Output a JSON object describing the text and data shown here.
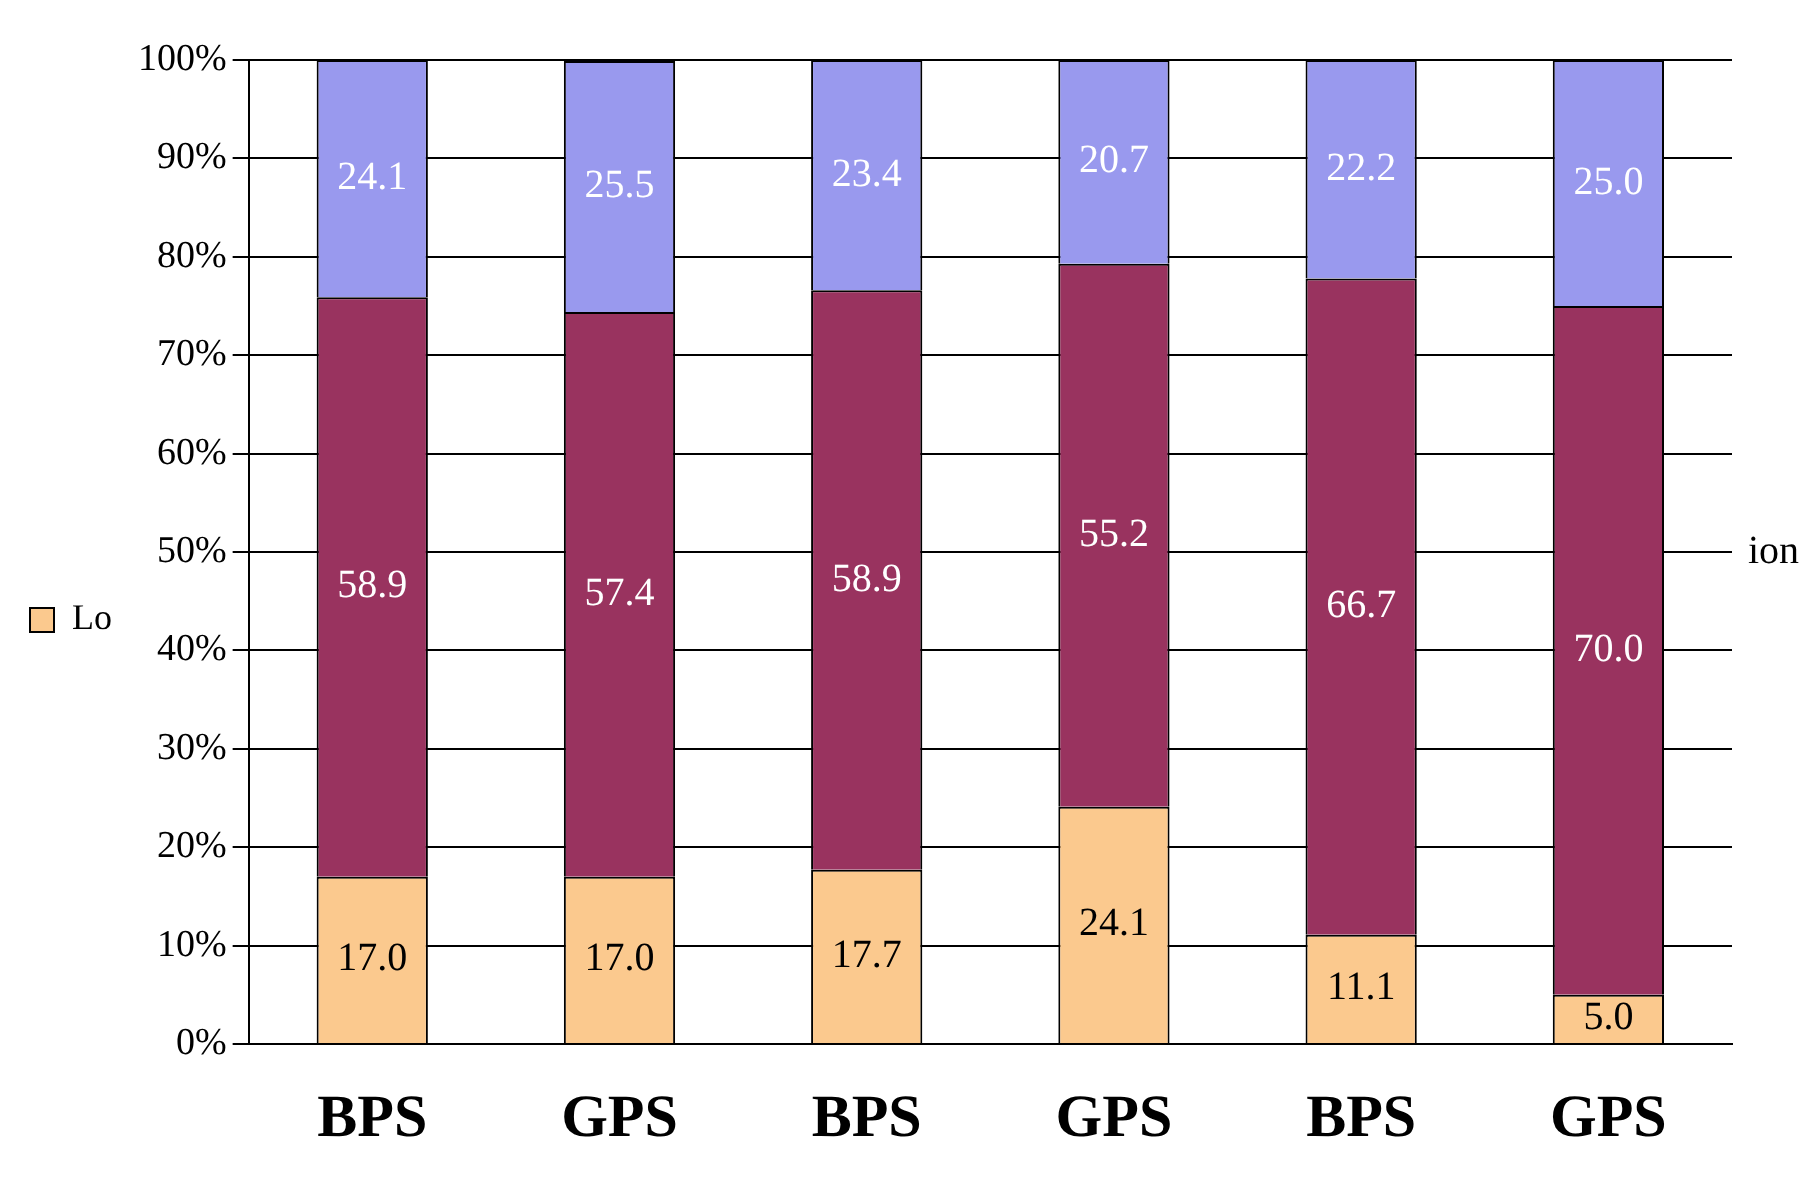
{
  "chart_data": {
    "type": "bar",
    "stacked": true,
    "categories": [
      "BPS",
      "GPS",
      "BPS",
      "GPS",
      "BPS",
      "GPS"
    ],
    "series": [
      {
        "name": "Lo",
        "color": "#fbc98e",
        "values": [
          17.0,
          17.0,
          17.7,
          24.1,
          11.1,
          5.0
        ],
        "value_labels": [
          "17.0",
          "17.0",
          "17.7",
          "24.1",
          "11.1",
          "5.0"
        ]
      },
      {
        "color": "#99335f",
        "values": [
          58.9,
          57.4,
          58.9,
          55.2,
          66.7,
          70.0
        ],
        "value_labels": [
          "58.9",
          "57.4",
          "58.9",
          "55.2",
          "66.7",
          "70.0"
        ]
      },
      {
        "color": "#9999ee",
        "values": [
          24.1,
          25.5,
          23.4,
          20.7,
          22.2,
          25.0
        ],
        "value_labels": [
          "24.1",
          "25.5",
          "23.4",
          "20.7",
          "22.2",
          "25.0"
        ]
      }
    ],
    "ylim": [
      0,
      100
    ],
    "yticks": [
      {
        "value": 0,
        "label": "0%"
      },
      {
        "value": 10,
        "label": "10%"
      },
      {
        "value": 20,
        "label": "20%"
      },
      {
        "value": 30,
        "label": "30%"
      },
      {
        "value": 40,
        "label": "40%"
      },
      {
        "value": 50,
        "label": "50%"
      },
      {
        "value": 60,
        "label": "60%"
      },
      {
        "value": 70,
        "label": "70%"
      },
      {
        "value": 80,
        "label": "80%"
      },
      {
        "value": 90,
        "label": "90%"
      },
      {
        "value": 100,
        "label": "100%"
      }
    ],
    "grid": "y",
    "legend": "left",
    "annotations": [
      "ion"
    ]
  }
}
